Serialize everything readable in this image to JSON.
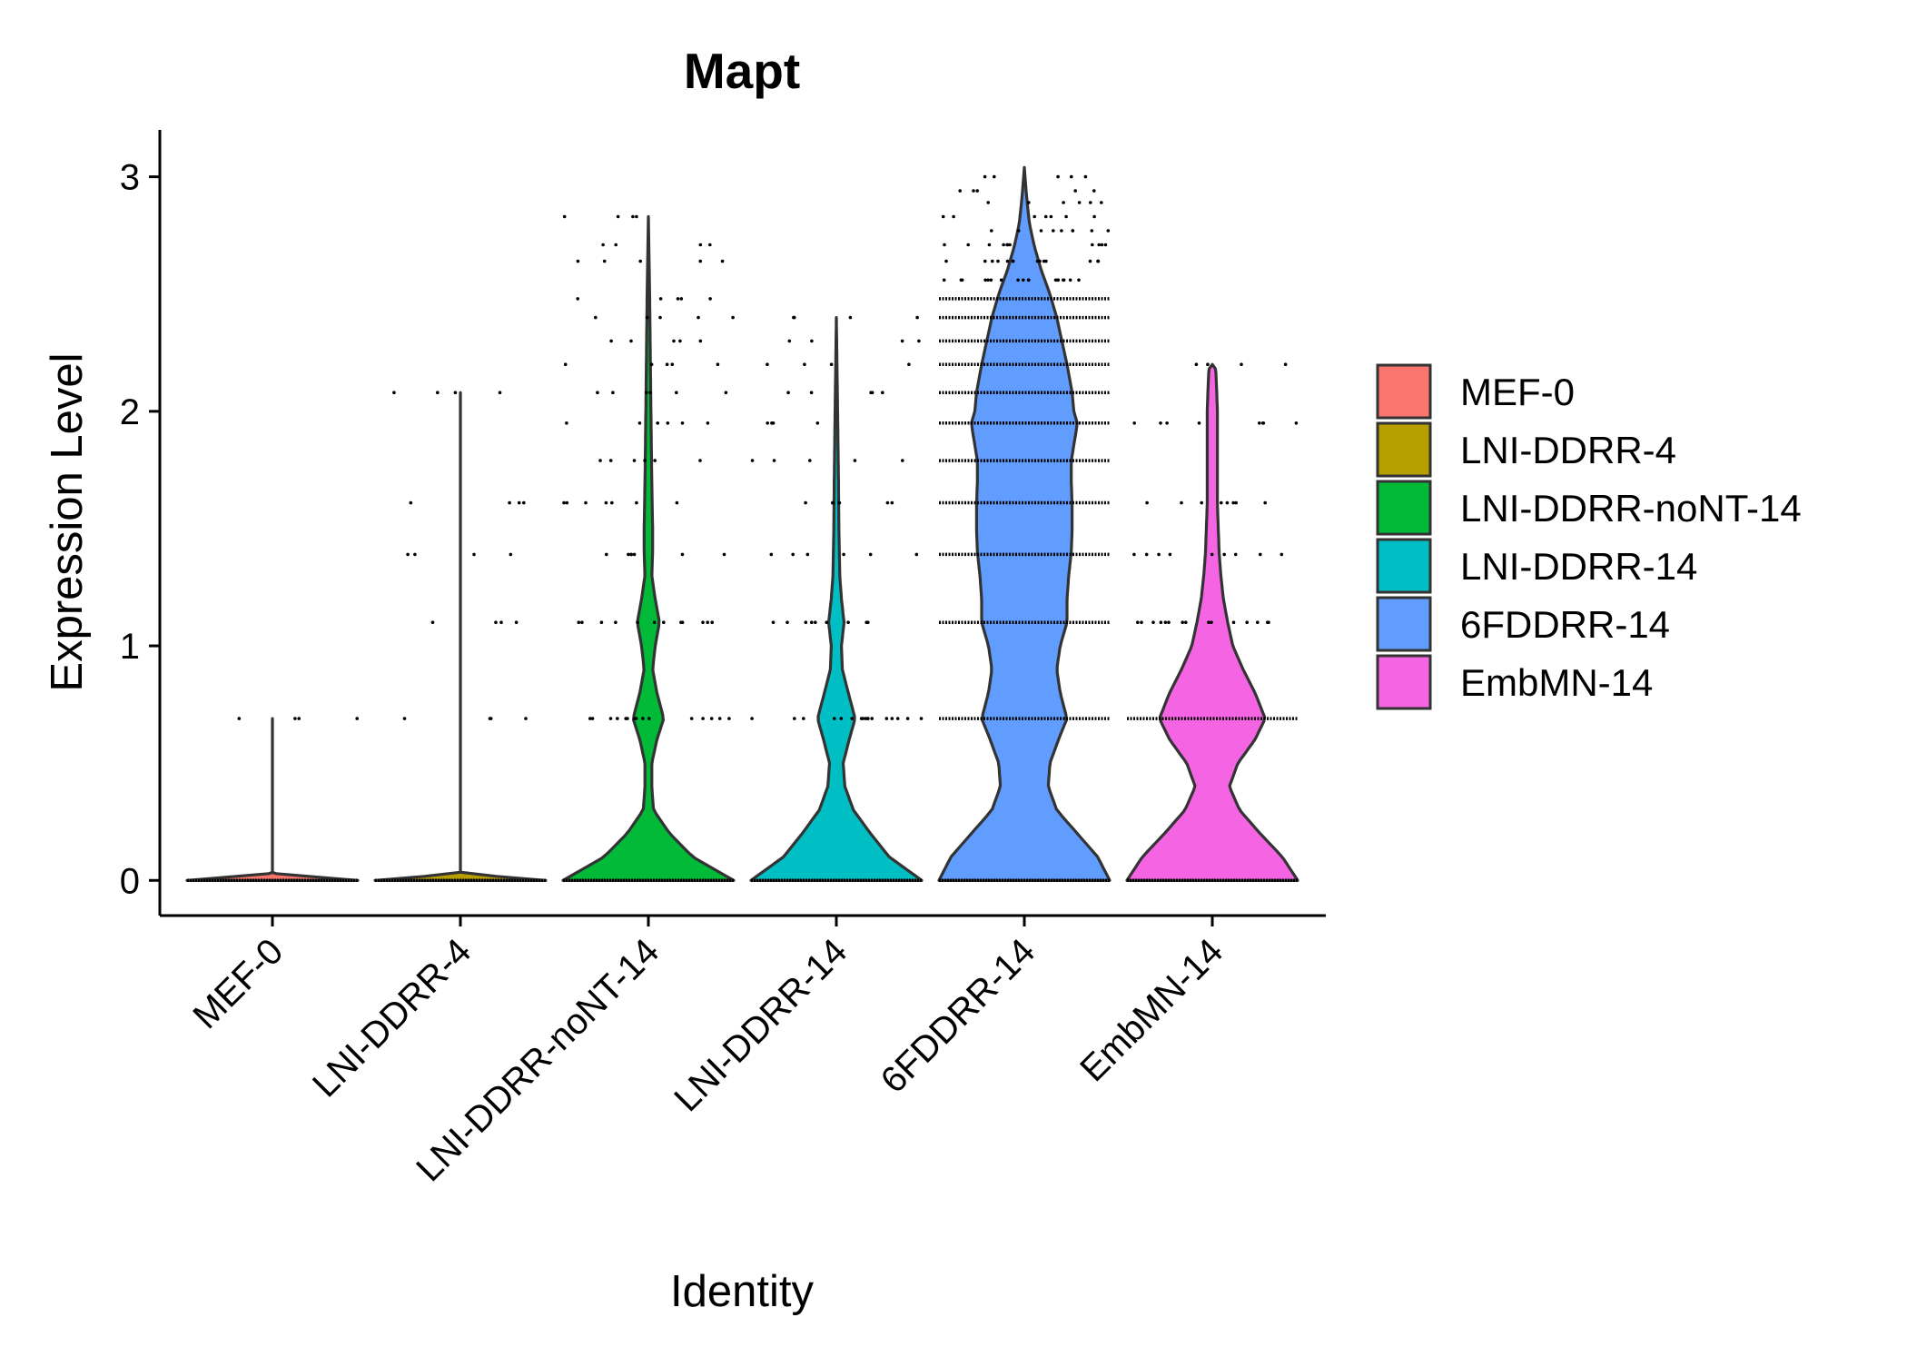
{
  "chart_data": {
    "type": "violin",
    "title": "Mapt",
    "xlabel": "Identity",
    "ylabel": "Expression Level",
    "ylim": [
      -0.15,
      3.2
    ],
    "yticks": [
      "0",
      "1",
      "2",
      "3"
    ],
    "legend_position": "right",
    "legend_title": "",
    "grid": false,
    "categories": [
      "MEF-0",
      "LNI-DDRR-4",
      "LNI-DDRR-noNT-14",
      "LNI-DDRR-14",
      "6FDDRR-14",
      "EmbMN-14"
    ],
    "series": [
      {
        "name": "MEF-0",
        "color": "#F8766D",
        "max": 0.69,
        "point_levels": [
          0.69
        ],
        "profile": [
          [
            0,
            1.0
          ],
          [
            0.03,
            0.0
          ],
          [
            0.69,
            0.0
          ]
        ]
      },
      {
        "name": "LNI-DDRR-4",
        "color": "#B79F00",
        "max": 2.08,
        "point_levels": [
          0.69,
          1.1,
          1.39,
          1.61,
          2.08
        ],
        "profile": [
          [
            0,
            1.0
          ],
          [
            0.03,
            0.0
          ],
          [
            2.08,
            0.0
          ]
        ]
      },
      {
        "name": "LNI-DDRR-noNT-14",
        "color": "#00BA38",
        "max": 2.83,
        "point_levels": [
          0.69,
          1.1,
          1.39,
          1.61,
          1.79,
          1.95,
          2.08,
          2.2,
          2.3,
          2.4,
          2.48,
          2.64,
          2.71,
          2.83
        ],
        "profile": [
          [
            0,
            1.0
          ],
          [
            0.1,
            0.52
          ],
          [
            0.2,
            0.25
          ],
          [
            0.3,
            0.06
          ],
          [
            0.4,
            0.04
          ],
          [
            0.5,
            0.04
          ],
          [
            0.6,
            0.1
          ],
          [
            0.69,
            0.18
          ],
          [
            0.8,
            0.1
          ],
          [
            0.9,
            0.05
          ],
          [
            1.0,
            0.08
          ],
          [
            1.1,
            0.13
          ],
          [
            1.2,
            0.08
          ],
          [
            1.3,
            0.04
          ],
          [
            1.4,
            0.05
          ],
          [
            1.5,
            0.05
          ],
          [
            1.7,
            0.04
          ],
          [
            2.0,
            0.03
          ],
          [
            2.5,
            0.015
          ],
          [
            2.83,
            0.0
          ]
        ]
      },
      {
        "name": "LNI-DDRR-14",
        "color": "#00BFC4",
        "max": 2.4,
        "point_levels": [
          0.69,
          1.1,
          1.39,
          1.61,
          1.79,
          1.95,
          2.08,
          2.2,
          2.3,
          2.4
        ],
        "profile": [
          [
            0,
            1.0
          ],
          [
            0.1,
            0.62
          ],
          [
            0.2,
            0.4
          ],
          [
            0.3,
            0.2
          ],
          [
            0.4,
            0.1
          ],
          [
            0.5,
            0.08
          ],
          [
            0.6,
            0.15
          ],
          [
            0.69,
            0.22
          ],
          [
            0.8,
            0.14
          ],
          [
            0.9,
            0.07
          ],
          [
            1.0,
            0.06
          ],
          [
            1.1,
            0.09
          ],
          [
            1.2,
            0.06
          ],
          [
            1.3,
            0.04
          ],
          [
            1.5,
            0.03
          ],
          [
            1.7,
            0.025
          ],
          [
            2.0,
            0.015
          ],
          [
            2.4,
            0.0
          ]
        ]
      },
      {
        "name": "6FDDRR-14",
        "color": "#619CFF",
        "max": 3.04,
        "point_levels": [
          0.69,
          1.1,
          1.39,
          1.61,
          1.79,
          1.95,
          2.08,
          2.2,
          2.3,
          2.4,
          2.48,
          2.56,
          2.64,
          2.71,
          2.77,
          2.83,
          2.89,
          2.94,
          3.0
        ],
        "profile": [
          [
            0,
            1.0
          ],
          [
            0.1,
            0.86
          ],
          [
            0.2,
            0.62
          ],
          [
            0.3,
            0.38
          ],
          [
            0.4,
            0.28
          ],
          [
            0.5,
            0.3
          ],
          [
            0.6,
            0.4
          ],
          [
            0.69,
            0.5
          ],
          [
            0.8,
            0.42
          ],
          [
            0.9,
            0.38
          ],
          [
            1.0,
            0.42
          ],
          [
            1.1,
            0.5
          ],
          [
            1.2,
            0.5
          ],
          [
            1.3,
            0.52
          ],
          [
            1.4,
            0.55
          ],
          [
            1.5,
            0.56
          ],
          [
            1.6,
            0.56
          ],
          [
            1.7,
            0.55
          ],
          [
            1.79,
            0.55
          ],
          [
            1.9,
            0.6
          ],
          [
            1.95,
            0.62
          ],
          [
            2.0,
            0.58
          ],
          [
            2.08,
            0.56
          ],
          [
            2.2,
            0.5
          ],
          [
            2.3,
            0.44
          ],
          [
            2.4,
            0.38
          ],
          [
            2.5,
            0.3
          ],
          [
            2.6,
            0.2
          ],
          [
            2.7,
            0.12
          ],
          [
            2.8,
            0.06
          ],
          [
            2.9,
            0.03
          ],
          [
            3.04,
            0.0
          ]
        ]
      },
      {
        "name": "EmbMN-14",
        "color": "#F564E3",
        "max": 2.2,
        "point_levels": [
          0.69,
          1.1,
          1.39,
          1.61,
          1.95,
          2.2
        ],
        "profile": [
          [
            0,
            1.0
          ],
          [
            0.1,
            0.82
          ],
          [
            0.2,
            0.56
          ],
          [
            0.3,
            0.32
          ],
          [
            0.4,
            0.2
          ],
          [
            0.5,
            0.3
          ],
          [
            0.6,
            0.5
          ],
          [
            0.69,
            0.62
          ],
          [
            0.8,
            0.5
          ],
          [
            0.9,
            0.36
          ],
          [
            1.0,
            0.24
          ],
          [
            1.1,
            0.18
          ],
          [
            1.2,
            0.13
          ],
          [
            1.3,
            0.1
          ],
          [
            1.4,
            0.08
          ],
          [
            1.5,
            0.07
          ],
          [
            1.6,
            0.06
          ],
          [
            1.7,
            0.06
          ],
          [
            1.8,
            0.06
          ],
          [
            1.9,
            0.06
          ],
          [
            2.0,
            0.06
          ],
          [
            2.1,
            0.05
          ],
          [
            2.18,
            0.04
          ],
          [
            2.2,
            0.0
          ]
        ]
      }
    ]
  }
}
